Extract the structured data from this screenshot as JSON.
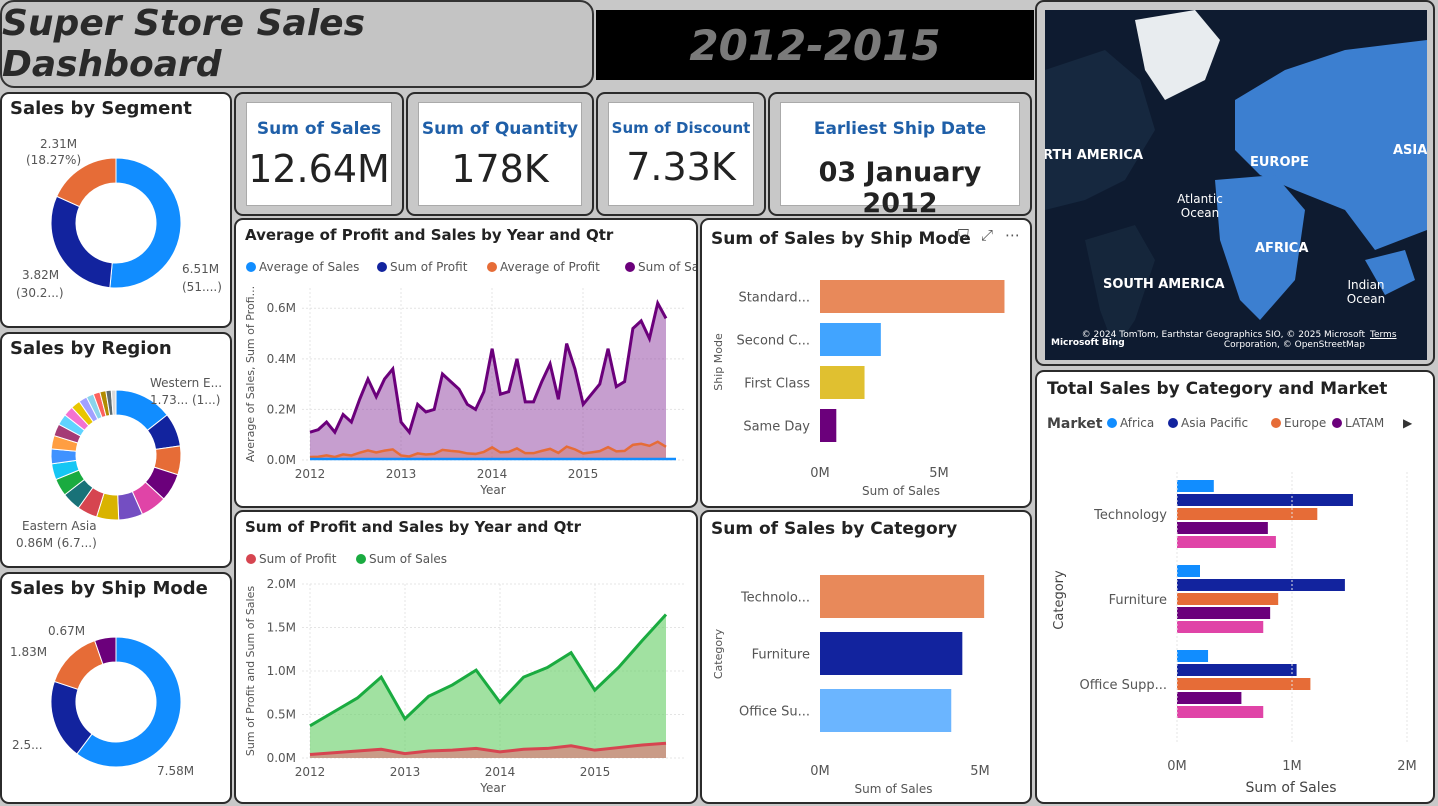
{
  "header": {
    "title": "Super Store Sales Dashboard",
    "years": "2012-2015"
  },
  "kpis": [
    {
      "label": "Sum of Sales",
      "value": "12.64M"
    },
    {
      "label": "Sum of Quantity",
      "value": "178K"
    },
    {
      "label": "Sum of Discount",
      "value": "7.33K"
    },
    {
      "label": "Earliest Ship Date",
      "value": "03 January 2012"
    }
  ],
  "segment": {
    "title": "Sales by Segment",
    "labels": [
      {
        "value": "2.31M",
        "pct": "(18.27%)"
      },
      {
        "value": "6.51M",
        "pct": "(51....)"
      },
      {
        "value": "3.82M",
        "pct": "(30.2...)"
      }
    ]
  },
  "region": {
    "title": "Sales by Region",
    "labels": [
      {
        "value": "Western E...",
        "pct": "1.73... (1...)"
      },
      {
        "value": "Eastern Asia",
        "pct": "0.86M (6.7...)"
      }
    ]
  },
  "shipmode_donut": {
    "title": "Sales by Ship Mode",
    "labels": [
      "0.67M",
      "1.83M",
      "2.5...",
      "7.58M"
    ]
  },
  "map": {
    "labels": [
      "RTH AMERICA",
      "EUROPE",
      "ASIA",
      "Atlantic Ocean",
      "AFRICA",
      "SOUTH AMERICA",
      "Indian Ocean"
    ],
    "attribution": "© 2024 TomTom, Earthstar Geographics SIO, © 2025 Microsoft Corporation, © OpenStreetMap",
    "terms": "Terms",
    "bing": "Microsoft Bing"
  },
  "colors": {
    "blue": "#118dff",
    "navy": "#12239e",
    "orange": "#e66c37",
    "purple": "#6b007b",
    "pink": "#e044a7",
    "yellow": "#d9b300",
    "lightblue": "#6bb5ff",
    "salmon": "#e8895a",
    "green": "#1aab40",
    "red": "#d64550"
  },
  "chart_data": [
    {
      "id": "avg_profit_sales",
      "type": "area",
      "title": "Average of Profit and Sales by Year and Qtr",
      "xlabel": "Year",
      "ylabel": "Average of Sales, Sum of Profi...",
      "legend": [
        "Average of Sales",
        "Sum of Profit",
        "Average of Profit",
        "Sum of Sales"
      ],
      "xticks": [
        "2012",
        "2013",
        "2014",
        "2015"
      ],
      "yticks": [
        "0.0M",
        "0.2M",
        "0.4M",
        "0.6M"
      ],
      "ylim": [
        0,
        0.68
      ],
      "series": [
        {
          "name": "Sum of Sales",
          "values": [
            0.11,
            0.12,
            0.15,
            0.11,
            0.18,
            0.15,
            0.24,
            0.32,
            0.25,
            0.32,
            0.36,
            0.15,
            0.11,
            0.22,
            0.19,
            0.2,
            0.34,
            0.31,
            0.28,
            0.22,
            0.2,
            0.27,
            0.44,
            0.26,
            0.27,
            0.4,
            0.23,
            0.23,
            0.31,
            0.38,
            0.24,
            0.46,
            0.36,
            0.22,
            0.26,
            0.3,
            0.44,
            0.29,
            0.31,
            0.52,
            0.55,
            0.48,
            0.62,
            0.56
          ]
        },
        {
          "name": "Sum of Profit",
          "values": [
            0.012,
            0.013,
            0.018,
            0.012,
            0.022,
            0.018,
            0.029,
            0.038,
            0.03,
            0.037,
            0.042,
            0.018,
            0.014,
            0.026,
            0.022,
            0.024,
            0.04,
            0.036,
            0.033,
            0.026,
            0.024,
            0.032,
            0.05,
            0.03,
            0.032,
            0.046,
            0.027,
            0.027,
            0.036,
            0.044,
            0.028,
            0.053,
            0.042,
            0.026,
            0.03,
            0.035,
            0.051,
            0.034,
            0.036,
            0.06,
            0.064,
            0.056,
            0.072,
            0.052
          ]
        }
      ]
    },
    {
      "id": "shipmode_bar",
      "type": "bar",
      "title": "Sum of Sales by Ship Mode",
      "xlabel": "Sum of Sales",
      "ylabel": "Ship Mode",
      "categories": [
        "Standard...",
        "Second C...",
        "First Class",
        "Same Day"
      ],
      "values": [
        7.58,
        2.5,
        1.83,
        0.67
      ],
      "xticks": [
        "0M",
        "5M"
      ],
      "xlim": [
        0,
        8.3
      ]
    },
    {
      "id": "profit_sales",
      "type": "area",
      "title": "Sum of Profit and Sales by Year and Qtr",
      "xlabel": "Year",
      "ylabel": "Sum of Profit and Sum of Sales",
      "legend": [
        "Sum of Profit",
        "Sum of Sales"
      ],
      "xticks": [
        "2012",
        "2013",
        "2014",
        "2015"
      ],
      "yticks": [
        "0.0M",
        "0.5M",
        "1.0M",
        "1.5M",
        "2.0M"
      ],
      "ylim": [
        0,
        2.0
      ],
      "series": [
        {
          "name": "Sum of Sales",
          "values": [
            0.37,
            0.53,
            0.69,
            0.93,
            0.45,
            0.71,
            0.84,
            1.01,
            0.64,
            0.93,
            1.04,
            1.21,
            0.78,
            1.04,
            1.35,
            1.65
          ]
        },
        {
          "name": "Sum of Profit",
          "values": [
            0.04,
            0.06,
            0.08,
            0.1,
            0.05,
            0.08,
            0.09,
            0.11,
            0.07,
            0.1,
            0.11,
            0.14,
            0.09,
            0.12,
            0.15,
            0.17
          ]
        }
      ]
    },
    {
      "id": "category_bar",
      "type": "bar",
      "title": "Sum of Sales by Category",
      "xlabel": "Sum of Sales",
      "ylabel": "Category",
      "categories": [
        "Technolo...",
        "Furniture",
        "Office Su..."
      ],
      "values": [
        4.74,
        4.11,
        3.79
      ],
      "xticks": [
        "0M",
        "5M"
      ],
      "xlim": [
        0,
        5.4
      ]
    },
    {
      "id": "category_market",
      "type": "bar",
      "title": "Total Sales by Category and Market",
      "legend_title": "Market",
      "legend": [
        "Africa",
        "Asia Pacific",
        "Europe",
        "LATAM"
      ],
      "xlabel": "Sum of Sales",
      "ylabel": "Category",
      "categories": [
        "Technology",
        "Furniture",
        "Office Supp..."
      ],
      "series": [
        {
          "name": "Africa",
          "values": [
            0.32,
            0.2,
            0.27
          ]
        },
        {
          "name": "Asia Pacific",
          "values": [
            1.53,
            1.46,
            1.04
          ]
        },
        {
          "name": "Europe",
          "values": [
            1.22,
            0.88,
            1.16
          ]
        },
        {
          "name": "LATAM",
          "values": [
            0.79,
            0.81,
            0.56
          ]
        },
        {
          "name": "",
          "values": [
            0.86,
            0.75,
            0.75
          ]
        }
      ],
      "xticks": [
        "0M",
        "1M",
        "2M"
      ],
      "xlim": [
        0,
        2.0
      ]
    }
  ]
}
